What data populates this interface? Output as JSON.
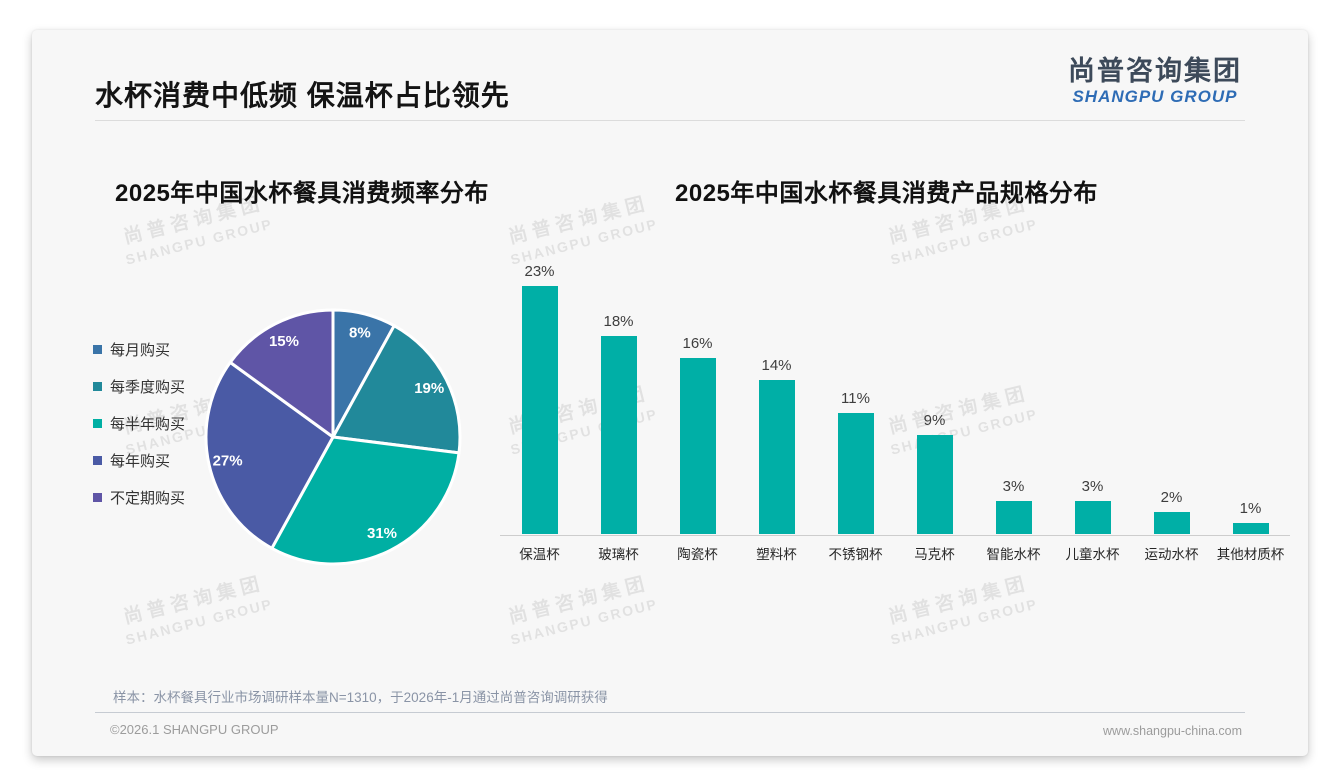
{
  "page": {
    "title": "水杯消费中低频 保温杯占比领先",
    "logo": {
      "cn": "尚普咨询集团",
      "en": "SHANGPU GROUP"
    },
    "watermark": {
      "cn": "尚普咨询集团",
      "en": "SHANGPU GROUP"
    },
    "footer": {
      "sample_note": "样本：水杯餐具行业市场调研样本量N=1310，于2026年-1月通过尚普咨询调研获得",
      "copyright": "©2026.1 SHANGPU GROUP",
      "website": "www.shangpu-china.com"
    },
    "colors": {
      "card_bg": "#F7F7F7",
      "logo_cn": "#3D4A5A",
      "logo_en": "#2E6CB5",
      "bar": "#00AFA6"
    }
  },
  "chart_data": [
    {
      "type": "pie",
      "title": "2025年中国水杯餐具消费频率分布",
      "categories": [
        "每月购买",
        "每季度购买",
        "每半年购买",
        "每年购买",
        "不定期购买"
      ],
      "values": [
        8,
        19,
        31,
        27,
        15
      ],
      "unit": "%",
      "colors": [
        "#3A74A8",
        "#21899A",
        "#00AFA3",
        "#4A5AA5",
        "#5F55A6"
      ],
      "legend_position": "left",
      "label_style": "percent inside slices, white bold",
      "start_angle": "top, clockwise"
    },
    {
      "type": "bar",
      "title": "2025年中国水杯餐具消费产品规格分布",
      "categories": [
        "保温杯",
        "玻璃杯",
        "陶瓷杯",
        "塑料杯",
        "不锈钢杯",
        "马克杯",
        "智能水杯",
        "儿童水杯",
        "运动水杯",
        "其他材质杯"
      ],
      "values": [
        23,
        18,
        16,
        14,
        11,
        9,
        3,
        3,
        2,
        1
      ],
      "unit": "%",
      "bar_color": "#00AFA6",
      "ylim": [
        0,
        25
      ],
      "grid": false,
      "data_labels": "above bars"
    }
  ]
}
